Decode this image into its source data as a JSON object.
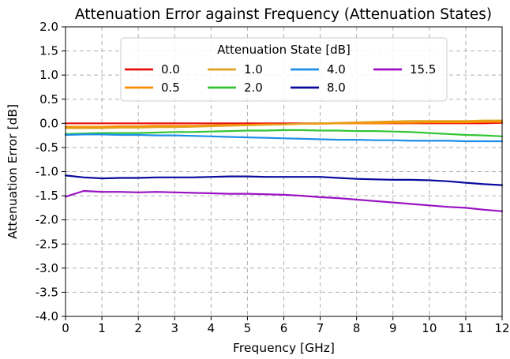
{
  "chart_data": {
    "type": "line",
    "title": "Attenuation Error against Frequency (Attenuation States)",
    "xlabel": "Frequency [GHz]",
    "ylabel": "Attenuation Error [dB]",
    "xlim": [
      0,
      12
    ],
    "ylim": [
      -4.0,
      2.0
    ],
    "x_ticks": [
      "0",
      "1",
      "2",
      "3",
      "4",
      "5",
      "6",
      "7",
      "8",
      "9",
      "10",
      "11",
      "12"
    ],
    "y_ticks": [
      "2.0",
      "1.5",
      "1.0",
      "0.5",
      "0.0",
      "-0.5",
      "-1.0",
      "-1.5",
      "-2.0",
      "-2.5",
      "-3.0",
      "-3.5",
      "-4.0"
    ],
    "grid": true,
    "legend": {
      "title": "Attenuation State [dB]",
      "placement": "top-center",
      "columns": 4
    },
    "x": [
      0,
      0.5,
      1,
      1.5,
      2,
      2.5,
      3,
      3.5,
      4,
      4.5,
      5,
      5.5,
      6,
      6.5,
      7,
      7.5,
      8,
      8.5,
      9,
      9.5,
      10,
      10.5,
      11,
      11.5,
      12
    ],
    "series": [
      {
        "name": "0.0",
        "color": "#e8110f",
        "values": [
          0,
          0,
          0,
          0,
          0,
          0,
          0,
          0,
          0,
          0,
          0,
          0,
          0,
          0,
          0,
          0,
          0,
          0,
          0,
          0,
          0,
          0,
          0,
          0,
          0.01
        ]
      },
      {
        "name": "0.5",
        "color": "#ff8c00",
        "values": [
          -0.07,
          -0.07,
          -0.07,
          -0.06,
          -0.06,
          -0.05,
          -0.05,
          -0.05,
          -0.04,
          -0.03,
          -0.03,
          -0.02,
          -0.02,
          -0.01,
          -0.01,
          0,
          0,
          0,
          0.01,
          0.01,
          0.02,
          0.02,
          0.02,
          0.03,
          0.03
        ]
      },
      {
        "name": "1.0",
        "color": "#e3a01b",
        "values": [
          -0.1,
          -0.1,
          -0.1,
          -0.09,
          -0.09,
          -0.08,
          -0.08,
          -0.07,
          -0.06,
          -0.05,
          -0.04,
          -0.03,
          -0.02,
          -0.01,
          0,
          0.01,
          0.02,
          0.03,
          0.04,
          0.05,
          0.05,
          0.05,
          0.05,
          0.06,
          0.06
        ]
      },
      {
        "name": "2.0",
        "color": "#33c433",
        "values": [
          -0.22,
          -0.21,
          -0.2,
          -0.2,
          -0.2,
          -0.19,
          -0.18,
          -0.18,
          -0.17,
          -0.16,
          -0.15,
          -0.15,
          -0.14,
          -0.14,
          -0.15,
          -0.15,
          -0.16,
          -0.16,
          -0.17,
          -0.18,
          -0.2,
          -0.22,
          -0.24,
          -0.25,
          -0.27
        ]
      },
      {
        "name": "4.0",
        "color": "#1e8fe8",
        "values": [
          -0.24,
          -0.23,
          -0.23,
          -0.24,
          -0.24,
          -0.25,
          -0.25,
          -0.26,
          -0.27,
          -0.28,
          -0.29,
          -0.3,
          -0.31,
          -0.32,
          -0.33,
          -0.34,
          -0.34,
          -0.35,
          -0.35,
          -0.36,
          -0.36,
          -0.36,
          -0.37,
          -0.37,
          -0.37
        ]
      },
      {
        "name": "8.0",
        "color": "#0a0a9e",
        "values": [
          -1.08,
          -1.12,
          -1.14,
          -1.13,
          -1.13,
          -1.12,
          -1.12,
          -1.12,
          -1.11,
          -1.1,
          -1.1,
          -1.11,
          -1.11,
          -1.11,
          -1.11,
          -1.13,
          -1.15,
          -1.16,
          -1.17,
          -1.17,
          -1.18,
          -1.2,
          -1.23,
          -1.26,
          -1.28
        ]
      },
      {
        "name": "15.5",
        "color": "#9a12c4",
        "values": [
          -1.52,
          -1.4,
          -1.42,
          -1.42,
          -1.43,
          -1.42,
          -1.43,
          -1.44,
          -1.45,
          -1.46,
          -1.46,
          -1.47,
          -1.48,
          -1.5,
          -1.53,
          -1.55,
          -1.58,
          -1.61,
          -1.64,
          -1.67,
          -1.7,
          -1.73,
          -1.75,
          -1.79,
          -1.82
        ]
      }
    ]
  }
}
